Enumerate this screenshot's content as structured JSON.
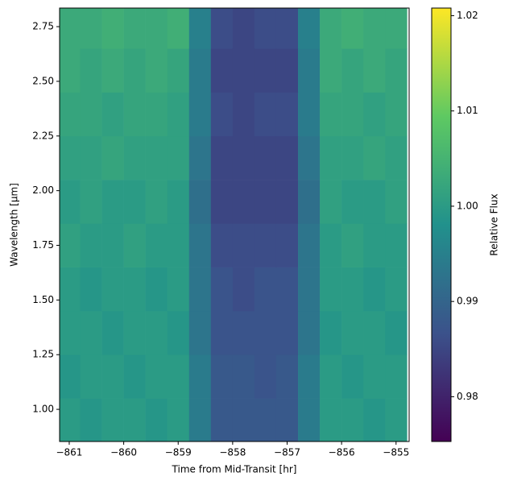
{
  "chart_data": {
    "type": "heatmap",
    "colormap": "viridis",
    "xlabel": "Time from Mid-Transit [hr]",
    "ylabel": "Wavelength [μm]",
    "colorbar_label": "Relative Flux",
    "xlim": [
      -861.177,
      -854.76
    ],
    "ylim": [
      0.853,
      2.835
    ],
    "clim": [
      0.9753,
      1.0208
    ],
    "xticks": [
      {
        "value": -861,
        "label": "−861"
      },
      {
        "value": -860,
        "label": "−860"
      },
      {
        "value": -859,
        "label": "−859"
      },
      {
        "value": -858,
        "label": "−858"
      },
      {
        "value": -857,
        "label": "−857"
      },
      {
        "value": -856,
        "label": "−856"
      },
      {
        "value": -855,
        "label": "−855"
      }
    ],
    "yticks": [
      {
        "value": 1.0,
        "label": "1.00"
      },
      {
        "value": 1.25,
        "label": "1.25"
      },
      {
        "value": 1.5,
        "label": "1.50"
      },
      {
        "value": 1.75,
        "label": "1.75"
      },
      {
        "value": 2.0,
        "label": "2.00"
      },
      {
        "value": 2.25,
        "label": "2.25"
      },
      {
        "value": 2.5,
        "label": "2.50"
      },
      {
        "value": 2.75,
        "label": "2.75"
      }
    ],
    "cticks": [
      {
        "value": 0.98,
        "label": "0.98"
      },
      {
        "value": 0.99,
        "label": "0.99"
      },
      {
        "value": 1.0,
        "label": "1.00"
      },
      {
        "value": 1.01,
        "label": "1.01"
      },
      {
        "value": 1.02,
        "label": "1.02"
      }
    ],
    "x_edges": [
      -861.2,
      -860.8,
      -860.4,
      -860.0,
      -859.6,
      -859.2,
      -858.8,
      -858.4,
      -858.0,
      -857.6,
      -857.2,
      -856.8,
      -856.4,
      -856.0,
      -855.6,
      -855.2,
      -854.8
    ],
    "y_edges": [
      0.85,
      1.05,
      1.25,
      1.45,
      1.65,
      1.85,
      2.05,
      2.25,
      2.45,
      2.65,
      2.85
    ],
    "z": [
      [
        1.0,
        0.999,
        1.0,
        1.0,
        0.999,
        1.0,
        0.994,
        0.988,
        0.988,
        0.988,
        0.988,
        0.994,
        1.0,
        1.0,
        0.999,
        1.0
      ],
      [
        0.999,
        1.0,
        1.0,
        0.999,
        1.0,
        1.0,
        0.994,
        0.988,
        0.988,
        0.987,
        0.988,
        0.994,
        1.0,
        0.999,
        1.0,
        1.0
      ],
      [
        1.0,
        1.0,
        0.999,
        1.0,
        1.0,
        0.999,
        0.993,
        0.987,
        0.987,
        0.987,
        0.987,
        0.993,
        0.999,
        1.0,
        1.0,
        0.999
      ],
      [
        1.0,
        0.999,
        1.0,
        1.0,
        0.999,
        1.0,
        0.993,
        0.987,
        0.986,
        0.987,
        0.987,
        0.993,
        1.0,
        1.0,
        0.999,
        1.0
      ],
      [
        1.001,
        1.0,
        1.0,
        1.001,
        1.0,
        1.0,
        0.993,
        0.986,
        0.986,
        0.986,
        0.986,
        0.993,
        1.0,
        1.001,
        1.0,
        1.0
      ],
      [
        1.0,
        1.001,
        1.0,
        1.0,
        1.001,
        1.0,
        0.992,
        0.985,
        0.985,
        0.985,
        0.985,
        0.992,
        1.001,
        1.0,
        1.0,
        1.001
      ],
      [
        1.001,
        1.001,
        1.002,
        1.001,
        1.001,
        1.001,
        0.993,
        0.985,
        0.985,
        0.985,
        0.985,
        0.993,
        1.001,
        1.001,
        1.002,
        1.001
      ],
      [
        1.002,
        1.002,
        1.001,
        1.002,
        1.002,
        1.001,
        0.994,
        0.986,
        0.985,
        0.986,
        0.986,
        0.994,
        1.002,
        1.002,
        1.001,
        1.002
      ],
      [
        1.003,
        1.002,
        1.003,
        1.002,
        1.003,
        1.002,
        0.994,
        0.985,
        0.985,
        0.985,
        0.985,
        0.994,
        1.003,
        1.002,
        1.003,
        1.002
      ],
      [
        1.003,
        1.003,
        1.004,
        1.003,
        1.003,
        1.004,
        0.995,
        0.986,
        0.985,
        0.986,
        0.986,
        0.995,
        1.003,
        1.004,
        1.003,
        1.003
      ]
    ]
  }
}
